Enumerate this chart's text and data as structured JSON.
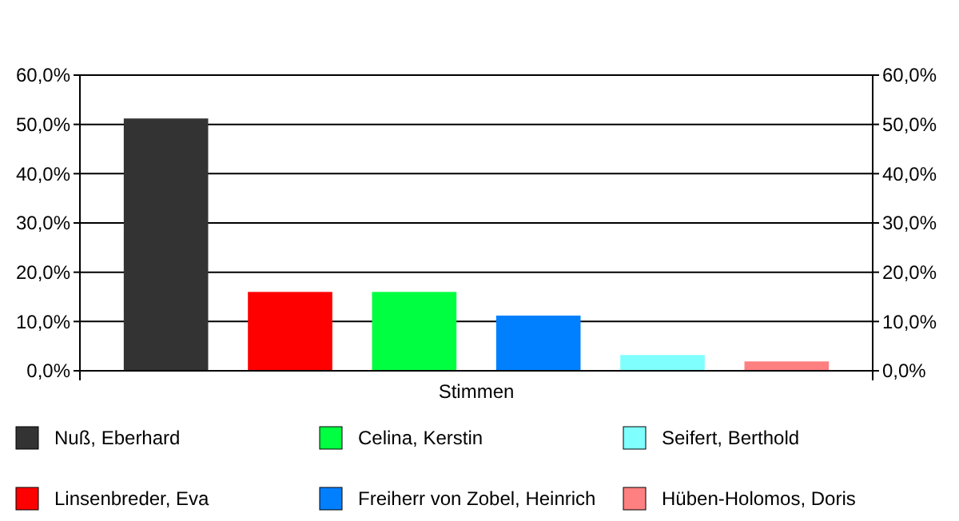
{
  "chart_data": {
    "type": "bar",
    "categories": [
      "Stimmen"
    ],
    "series": [
      {
        "name": "Nuß, Eberhard",
        "color": "#333333",
        "values": [
          51.2
        ]
      },
      {
        "name": "Linsenbreder, Eva",
        "color": "#ff0000",
        "values": [
          16.0
        ]
      },
      {
        "name": "Celina, Kerstin",
        "color": "#00ff40",
        "values": [
          16.0
        ]
      },
      {
        "name": "Freiherr von Zobel, Heinrich",
        "color": "#0080ff",
        "values": [
          11.2
        ]
      },
      {
        "name": "Seifert, Berthold",
        "color": "#80ffff",
        "values": [
          3.2
        ]
      },
      {
        "name": "Hüben-Holomos, Doris",
        "color": "#ff8080",
        "values": [
          1.9
        ]
      }
    ],
    "ylim": [
      0,
      60
    ],
    "yticks": [
      {
        "value": 0,
        "label": "0,0%"
      },
      {
        "value": 10,
        "label": "10,0%"
      },
      {
        "value": 20,
        "label": "20,0%"
      },
      {
        "value": 30,
        "label": "30,0%"
      },
      {
        "value": 40,
        "label": "40,0%"
      },
      {
        "value": 50,
        "label": "50,0%"
      },
      {
        "value": 60,
        "label": "60,0%"
      }
    ],
    "grid": "y",
    "legend": "bottom"
  }
}
